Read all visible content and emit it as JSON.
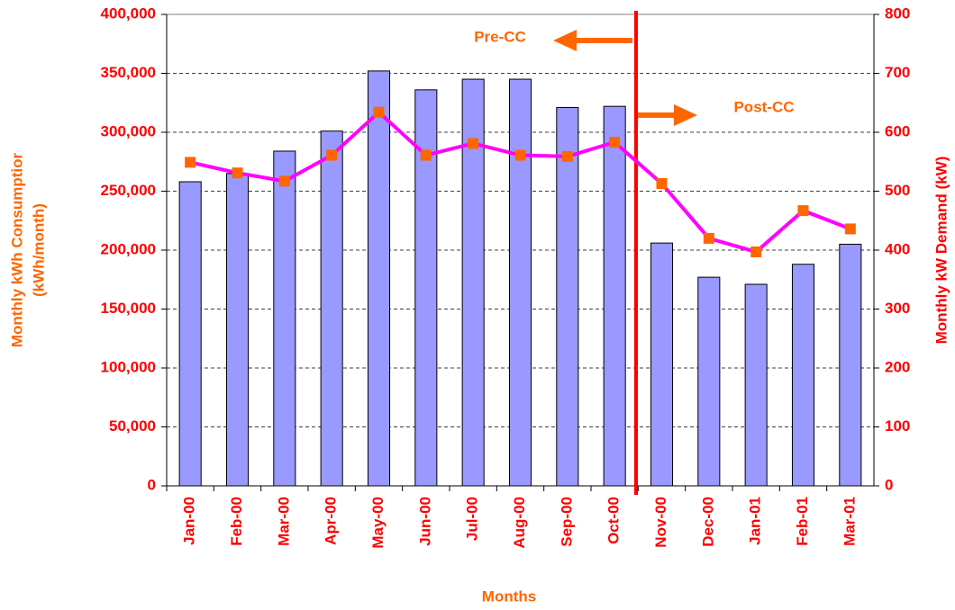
{
  "chart_data": {
    "type": "bar_line",
    "y_label_lines": [
      "Monthly kWh Consumptior",
      "(kWh/month)"
    ],
    "y2_label": "Monthly kW Demand (kW)",
    "x_label": "Months",
    "annotations": [
      "Pre-CC",
      "Post-CC"
    ],
    "categories": [
      "Jan-00",
      "Feb-00",
      "Mar-00",
      "Apr-00",
      "May-00",
      "Jun-00",
      "Jul-00",
      "Aug-00",
      "Sep-00",
      "Oct-00",
      "Nov-00",
      "Dec-00",
      "Jan-01",
      "Feb-01",
      "Mar-01"
    ],
    "series": [
      {
        "type": "bar",
        "color": "#9999ff",
        "values": [
          258000,
          265000,
          284000,
          301000,
          352000,
          336000,
          345000,
          345000,
          321000,
          322000,
          206000,
          177000,
          171000,
          188000,
          205000
        ]
      },
      {
        "type": "line",
        "axis": "y2",
        "color": "#ff00ff",
        "marker_color": "#ff6600",
        "values": [
          549,
          531,
          517,
          561,
          634,
          561,
          581,
          561,
          559,
          583,
          513,
          420,
          397,
          467,
          436
        ]
      }
    ],
    "ylim": [
      0,
      400000
    ],
    "yticks": [
      0,
      {
        "value": 50000,
        "label": "50,000"
      },
      {
        "value": 100000,
        "label": "100,000"
      },
      {
        "value": 150000,
        "label": "150,000"
      },
      {
        "value": 200000,
        "label": "200,000"
      },
      {
        "value": 250000,
        "label": "250,000"
      },
      {
        "value": 300000,
        "label": "300,000"
      },
      {
        "value": 350000,
        "label": "350,000"
      },
      {
        "value": 400000,
        "label": "400,000"
      }
    ],
    "y2lim": [
      0,
      800
    ],
    "y2ticks": [
      0,
      100,
      200,
      300,
      400,
      500,
      600,
      700,
      800
    ],
    "grid": true
  }
}
